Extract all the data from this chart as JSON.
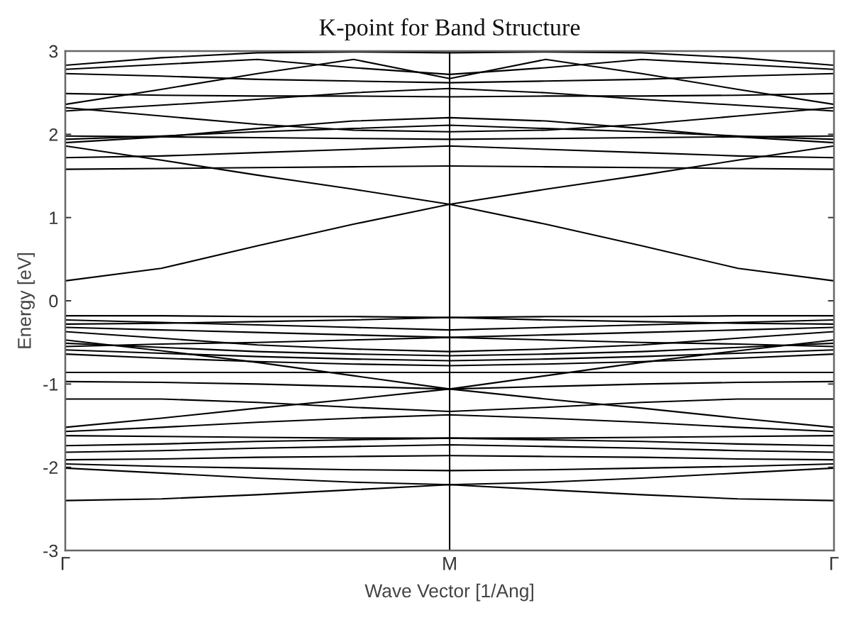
{
  "chart_data": {
    "type": "line",
    "title": "K-point for Band Structure",
    "xlabel": "Wave Vector [1/Ang]",
    "ylabel": "Energy [eV]",
    "categories": [
      "Γ",
      null,
      null,
      null,
      "M",
      null,
      null,
      null,
      "Γ"
    ],
    "ylim": [
      -3,
      3
    ],
    "yticks": [
      -3,
      -2,
      -1,
      0,
      1,
      2,
      3
    ],
    "ref_lines": [
      {
        "axis": "x",
        "value": "M",
        "color": "#000000"
      }
    ],
    "series": [
      {
        "color": "#000000",
        "values": [
          0.24,
          0.39,
          0.66,
          0.92,
          1.16,
          0.92,
          0.66,
          0.39,
          0.24
        ]
      },
      {
        "color": "#000000",
        "values": [
          1.86,
          1.69,
          1.51,
          1.34,
          1.16,
          1.34,
          1.51,
          1.69,
          1.86
        ]
      },
      {
        "color": "#000000",
        "values": [
          1.58,
          1.59,
          1.6,
          1.61,
          1.62,
          1.61,
          1.6,
          1.59,
          1.58
        ]
      },
      {
        "color": "#000000",
        "values": [
          1.72,
          1.74,
          1.78,
          1.82,
          1.86,
          1.82,
          1.78,
          1.74,
          1.72
        ]
      },
      {
        "color": "#000000",
        "values": [
          1.98,
          1.97,
          1.96,
          1.95,
          1.94,
          1.95,
          1.96,
          1.97,
          1.98
        ]
      },
      {
        "color": "#000000",
        "values": [
          1.94,
          1.98,
          2.03,
          2.07,
          2.11,
          2.07,
          2.03,
          1.98,
          1.94
        ]
      },
      {
        "color": "#000000",
        "values": [
          1.9,
          1.97,
          2.07,
          2.16,
          2.2,
          2.16,
          2.07,
          1.97,
          1.9
        ]
      },
      {
        "color": "#000000",
        "values": [
          2.32,
          2.22,
          2.12,
          2.05,
          2.03,
          2.05,
          2.12,
          2.22,
          2.32
        ]
      },
      {
        "color": "#000000",
        "values": [
          2.28,
          2.35,
          2.42,
          2.5,
          2.55,
          2.5,
          2.42,
          2.35,
          2.28
        ]
      },
      {
        "color": "#000000",
        "values": [
          2.49,
          2.47,
          2.46,
          2.46,
          2.45,
          2.46,
          2.46,
          2.47,
          2.49
        ]
      },
      {
        "color": "#000000",
        "values": [
          2.36,
          2.54,
          2.73,
          2.9,
          2.67,
          2.9,
          2.73,
          2.54,
          2.36
        ]
      },
      {
        "color": "#000000",
        "values": [
          2.73,
          2.7,
          2.66,
          2.64,
          2.62,
          2.64,
          2.66,
          2.7,
          2.73
        ]
      },
      {
        "color": "#000000",
        "values": [
          2.83,
          2.92,
          2.98,
          2.99,
          2.98,
          2.99,
          2.98,
          2.92,
          2.83
        ]
      },
      {
        "color": "#000000",
        "values": [
          2.78,
          2.84,
          2.9,
          2.8,
          2.72,
          2.8,
          2.9,
          2.84,
          2.78
        ]
      },
      {
        "color": "#000000",
        "values": [
          -0.18,
          -0.18,
          -0.19,
          -0.19,
          -0.2,
          -0.19,
          -0.19,
          -0.18,
          -0.18
        ]
      },
      {
        "color": "#000000",
        "values": [
          -0.23,
          -0.26,
          -0.29,
          -0.32,
          -0.35,
          -0.32,
          -0.29,
          -0.26,
          -0.23
        ]
      },
      {
        "color": "#000000",
        "values": [
          -0.28,
          -0.27,
          -0.25,
          -0.23,
          -0.2,
          -0.23,
          -0.25,
          -0.27,
          -0.28
        ]
      },
      {
        "color": "#000000",
        "values": [
          -0.32,
          -0.35,
          -0.38,
          -0.41,
          -0.44,
          -0.41,
          -0.38,
          -0.35,
          -0.32
        ]
      },
      {
        "color": "#000000",
        "values": [
          -0.37,
          -0.45,
          -0.53,
          -0.58,
          -0.61,
          -0.58,
          -0.53,
          -0.45,
          -0.37
        ]
      },
      {
        "color": "#000000",
        "values": [
          -0.47,
          -0.6,
          -0.74,
          -0.9,
          -1.06,
          -0.9,
          -0.74,
          -0.6,
          -0.47
        ]
      },
      {
        "color": "#000000",
        "values": [
          -0.51,
          -0.56,
          -0.61,
          -0.64,
          -0.66,
          -0.64,
          -0.61,
          -0.56,
          -0.51
        ]
      },
      {
        "color": "#000000",
        "values": [
          -0.55,
          -0.52,
          -0.5,
          -0.47,
          -0.44,
          -0.47,
          -0.5,
          -0.52,
          -0.55
        ]
      },
      {
        "color": "#000000",
        "values": [
          -0.59,
          -0.63,
          -0.67,
          -0.7,
          -0.72,
          -0.7,
          -0.67,
          -0.63,
          -0.59
        ]
      },
      {
        "color": "#000000",
        "values": [
          -0.64,
          -0.69,
          -0.73,
          -0.76,
          -0.78,
          -0.76,
          -0.73,
          -0.69,
          -0.64
        ]
      },
      {
        "color": "#000000",
        "values": [
          -0.86,
          -0.86,
          -0.86,
          -0.86,
          -0.86,
          -0.86,
          -0.86,
          -0.86,
          -0.86
        ]
      },
      {
        "color": "#000000",
        "values": [
          -0.97,
          -0.98,
          -1.0,
          -1.03,
          -1.06,
          -1.03,
          -1.0,
          -0.98,
          -0.97
        ]
      },
      {
        "color": "#000000",
        "values": [
          -1.18,
          -1.18,
          -1.22,
          -1.28,
          -1.33,
          -1.28,
          -1.22,
          -1.18,
          -1.18
        ]
      },
      {
        "color": "#000000",
        "values": [
          -1.52,
          -1.41,
          -1.29,
          -1.18,
          -1.06,
          -1.18,
          -1.29,
          -1.41,
          -1.52
        ]
      },
      {
        "color": "#000000",
        "values": [
          -1.57,
          -1.52,
          -1.46,
          -1.41,
          -1.37,
          -1.41,
          -1.46,
          -1.52,
          -1.57
        ]
      },
      {
        "color": "#000000",
        "values": [
          -1.62,
          -1.63,
          -1.64,
          -1.65,
          -1.65,
          -1.65,
          -1.64,
          -1.63,
          -1.62
        ]
      },
      {
        "color": "#000000",
        "values": [
          -1.74,
          -1.72,
          -1.69,
          -1.67,
          -1.65,
          -1.67,
          -1.69,
          -1.72,
          -1.74
        ]
      },
      {
        "color": "#000000",
        "values": [
          -1.82,
          -1.8,
          -1.77,
          -1.75,
          -1.73,
          -1.75,
          -1.77,
          -1.8,
          -1.82
        ]
      },
      {
        "color": "#000000",
        "values": [
          -1.91,
          -1.9,
          -1.88,
          -1.87,
          -1.86,
          -1.87,
          -1.88,
          -1.9,
          -1.91
        ]
      },
      {
        "color": "#000000",
        "values": [
          -1.96,
          -1.99,
          -2.01,
          -2.03,
          -2.04,
          -2.03,
          -2.01,
          -1.99,
          -1.96
        ]
      },
      {
        "color": "#000000",
        "values": [
          -2.01,
          -2.07,
          -2.13,
          -2.18,
          -2.21,
          -2.18,
          -2.13,
          -2.07,
          -2.01
        ]
      },
      {
        "color": "#000000",
        "values": [
          -2.4,
          -2.38,
          -2.33,
          -2.27,
          -2.21,
          -2.27,
          -2.33,
          -2.38,
          -2.4
        ]
      }
    ]
  }
}
